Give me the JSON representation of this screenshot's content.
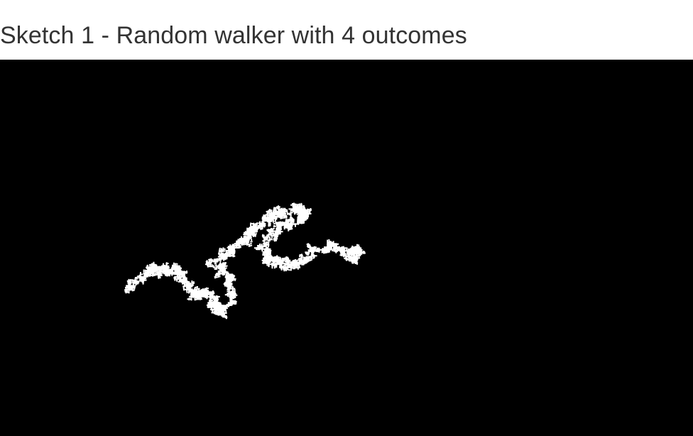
{
  "page": {
    "title": "Sketch 1 - Random walker with 4 outcomes"
  },
  "sketch": {
    "background_color": "#000000",
    "walker_color": "#ffffff",
    "outcomes": 4
  }
}
